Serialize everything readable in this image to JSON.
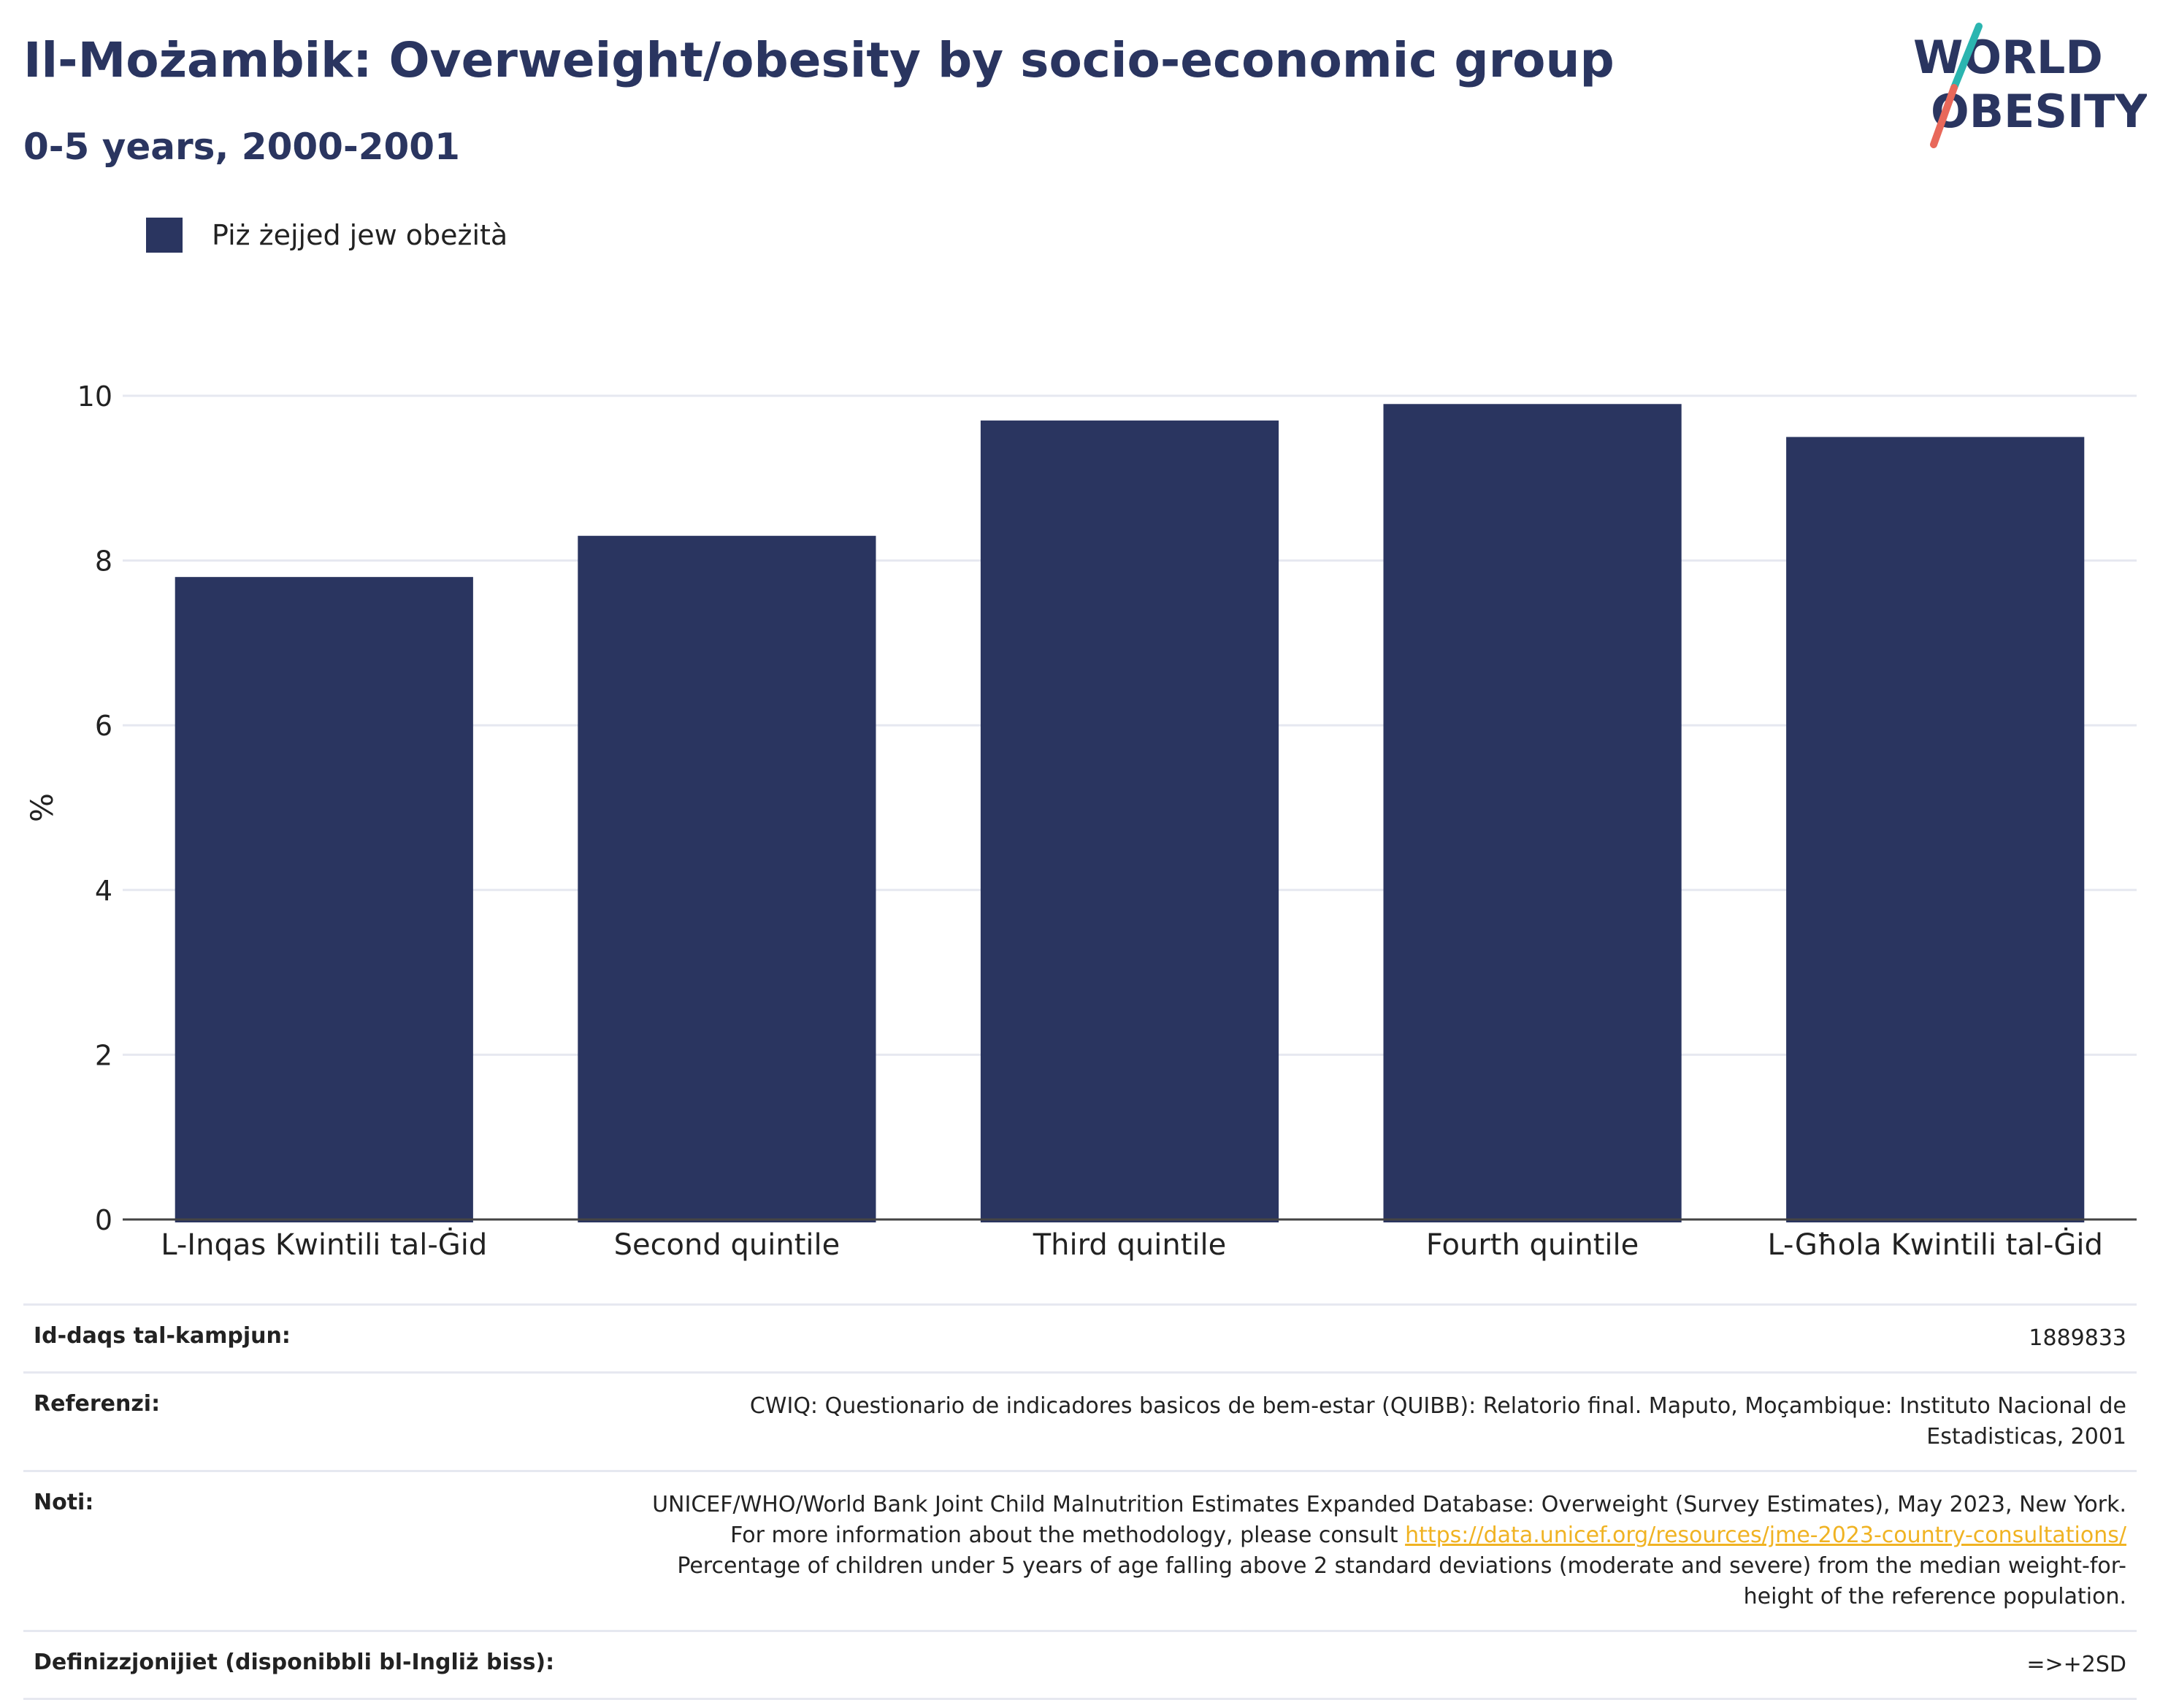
{
  "header": {
    "title": "Il-Możambik: Overweight/obesity by socio-economic group",
    "subtitle": "0-5 years, 2000-2001"
  },
  "logo": {
    "line1": "WORLD",
    "line2": "OBESITY"
  },
  "legend": {
    "label": "Piż żejjed jew obeżità"
  },
  "colors": {
    "bar": "#2a3560",
    "text": "#2a3560",
    "grid": "#e6e8f0",
    "link": "#f0b323",
    "logo_teal": "#2bb5b0",
    "logo_red": "#e8685a"
  },
  "chart_data": {
    "type": "bar",
    "categories": [
      "L-Inqas Kwintili tal-Ġid",
      "Second quintile",
      "Third quintile",
      "Fourth quintile",
      "L-Għola Kwintili tal-Ġid"
    ],
    "series": [
      {
        "name": "Piż żejjed jew obeżità",
        "values": [
          7.8,
          8.3,
          9.7,
          9.9,
          9.5
        ]
      }
    ],
    "ylabel": "%",
    "ylim": [
      0,
      10
    ],
    "yticks": [
      0,
      2,
      4,
      6,
      8,
      10
    ],
    "grid": true,
    "legend_position": "top-left"
  },
  "meta": {
    "sample_label": "Id-daqs tal-kampjun:",
    "sample_value": "1889833",
    "references_label": "Referenzi:",
    "references_value": "CWIQ: Questionario de indicadores basicos de bem-estar (QUIBB): Relatorio final. Maputo, Moçambique: Instituto Nacional de Estadisticas, 2001",
    "notes_label": "Noti:",
    "notes_text1": "UNICEF/WHO/World Bank Joint Child Malnutrition Estimates Expanded Database: Overweight (Survey Estimates), May 2023, New York. For more information about the methodology, please consult",
    "notes_link": "https://data.unicef.org/resources/jme-2023-country-consultations/",
    "notes_text2": "Percentage of children under 5 years of age falling above 2 standard deviations (moderate and severe) from the median weight-for-height of the reference population.",
    "definitions_label": "Definizzjonijiet (disponibbli bl-Ingliż biss):",
    "definitions_value": "=>+2SD"
  }
}
